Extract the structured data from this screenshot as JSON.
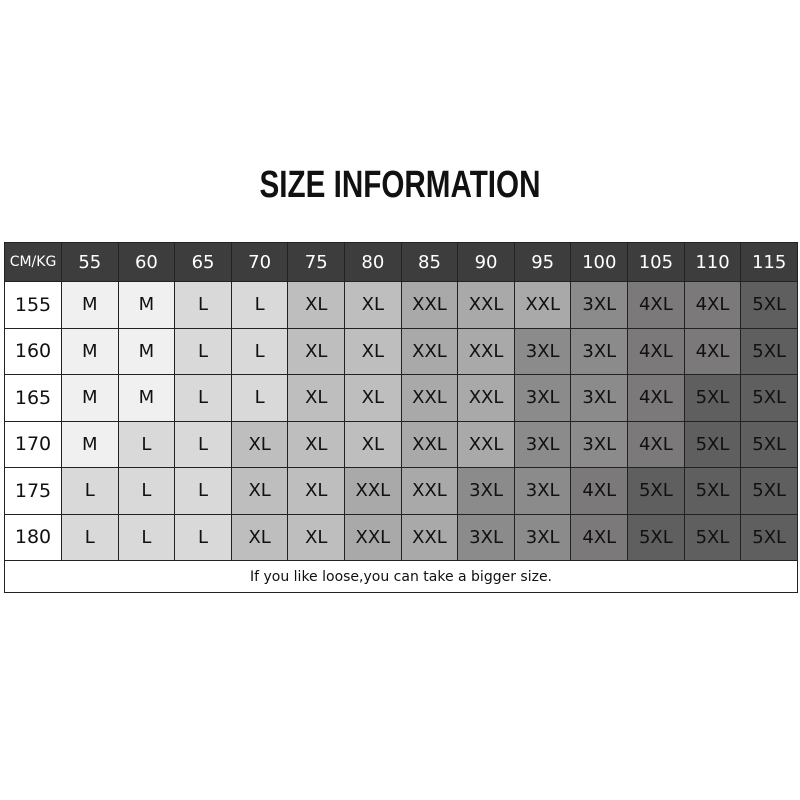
{
  "title": "SIZE INFORMATION",
  "table": {
    "corner_label": "CM/KG",
    "weights": [
      "55",
      "60",
      "65",
      "70",
      "75",
      "80",
      "85",
      "90",
      "95",
      "100",
      "105",
      "110",
      "115"
    ],
    "rows": [
      {
        "height": "155",
        "sizes": [
          "M",
          "M",
          "L",
          "L",
          "XL",
          "XL",
          "XXL",
          "XXL",
          "XXL",
          "3XL",
          "4XL",
          "4XL",
          "5XL"
        ]
      },
      {
        "height": "160",
        "sizes": [
          "M",
          "M",
          "L",
          "L",
          "XL",
          "XL",
          "XXL",
          "XXL",
          "3XL",
          "3XL",
          "4XL",
          "4XL",
          "5XL"
        ]
      },
      {
        "height": "165",
        "sizes": [
          "M",
          "M",
          "L",
          "L",
          "XL",
          "XL",
          "XXL",
          "XXL",
          "3XL",
          "3XL",
          "4XL",
          "5XL",
          "5XL"
        ]
      },
      {
        "height": "170",
        "sizes": [
          "M",
          "L",
          "L",
          "XL",
          "XL",
          "XL",
          "XXL",
          "XXL",
          "3XL",
          "3XL",
          "4XL",
          "5XL",
          "5XL"
        ]
      },
      {
        "height": "175",
        "sizes": [
          "L",
          "L",
          "L",
          "XL",
          "XL",
          "XXL",
          "XXL",
          "3XL",
          "3XL",
          "4XL",
          "5XL",
          "5XL",
          "5XL"
        ]
      },
      {
        "height": "180",
        "sizes": [
          "L",
          "L",
          "L",
          "XL",
          "XL",
          "XXL",
          "XXL",
          "3XL",
          "3XL",
          "4XL",
          "5XL",
          "5XL",
          "5XL"
        ]
      }
    ],
    "note": "If you like loose,you can take a bigger size."
  },
  "colors": {
    "header_bg": "#3d3d3d",
    "size_shades": {
      "M": "#f0f0f0",
      "L": "#d9d9d9",
      "XL": "#bebebe",
      "XXL": "#a9a9a9",
      "3XL": "#8b8b8b",
      "4XL": "#7b7979",
      "5XL": "#5f5f5f"
    }
  }
}
